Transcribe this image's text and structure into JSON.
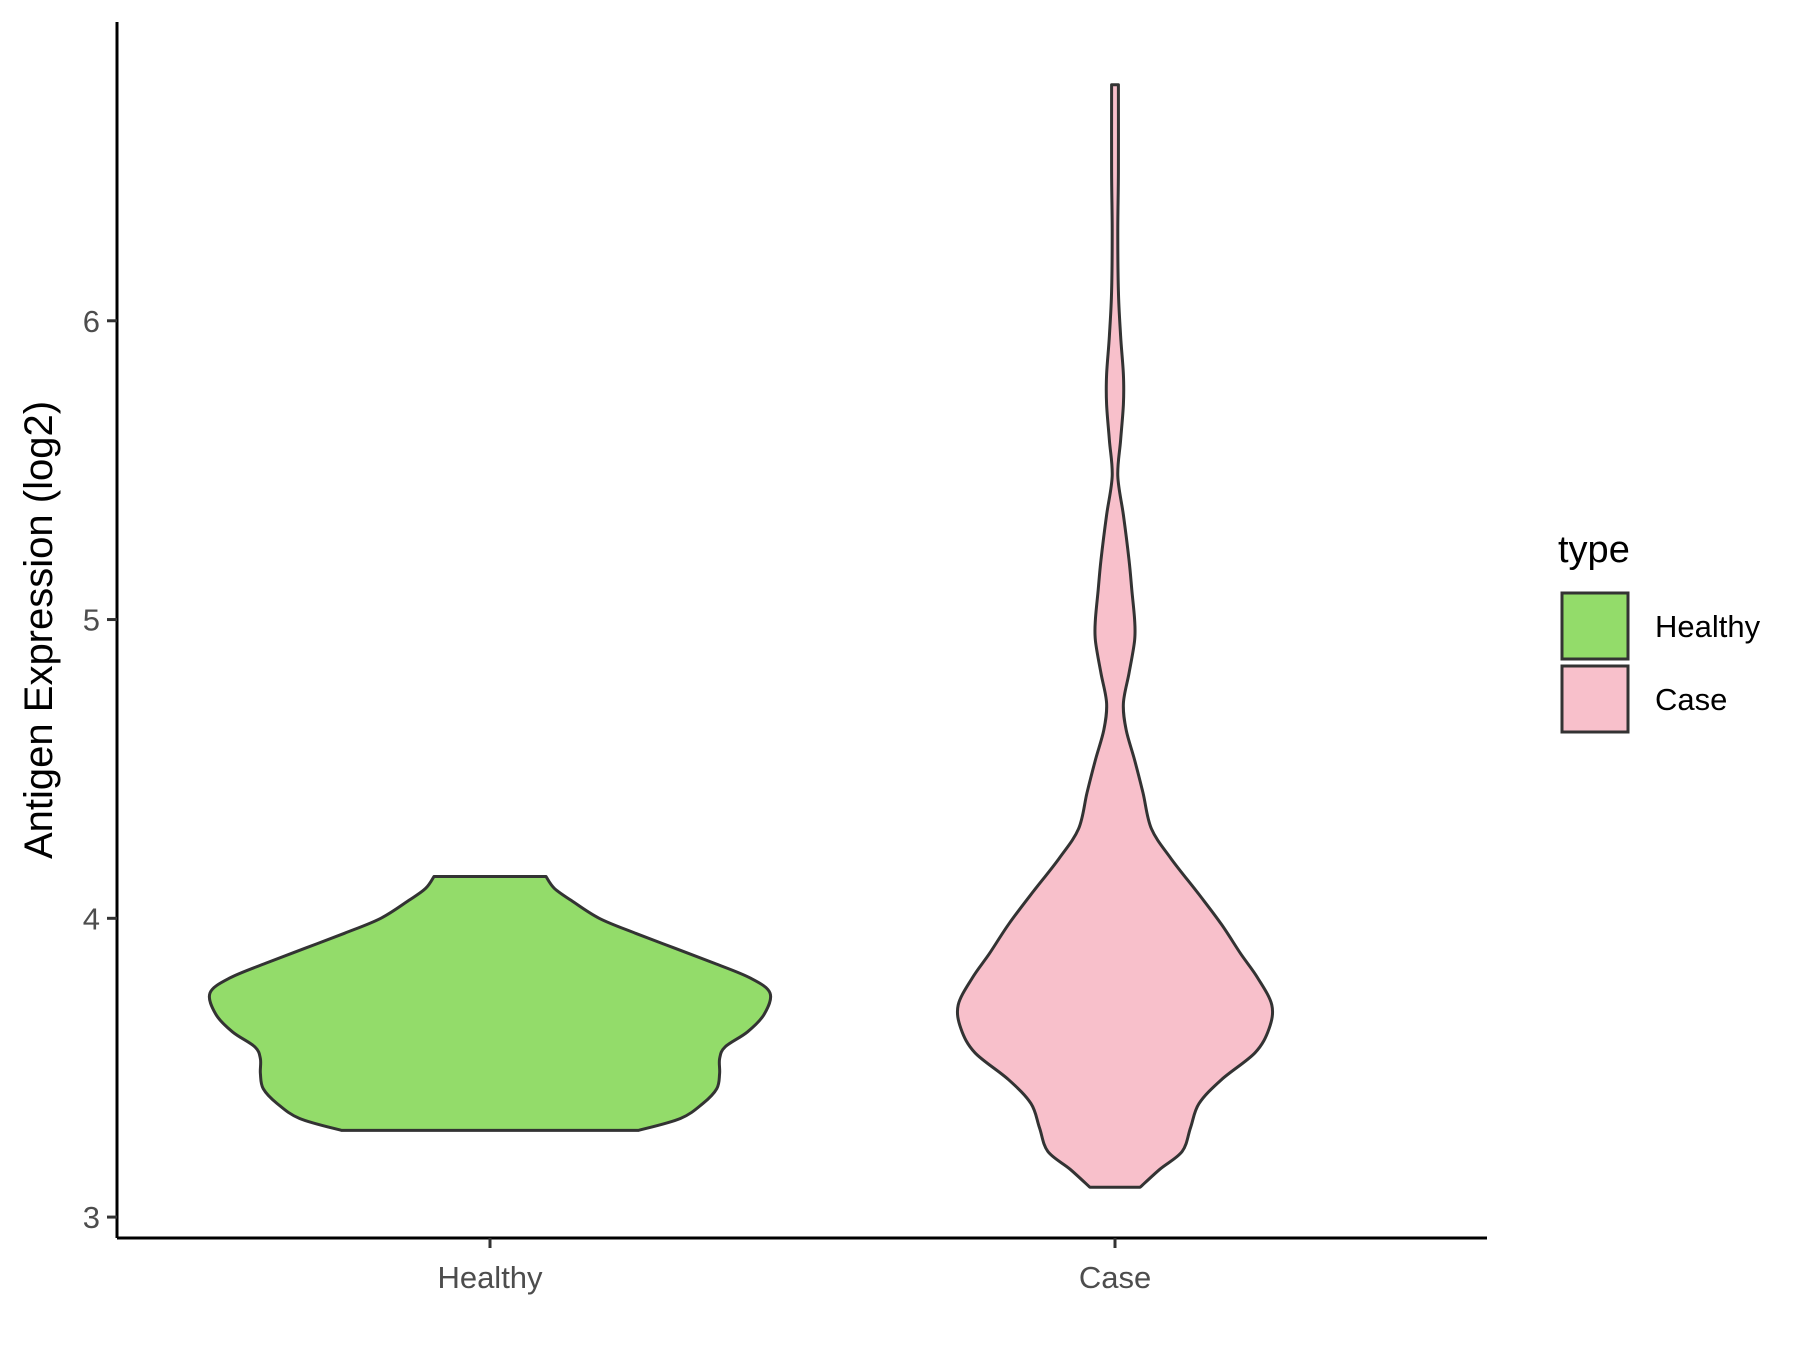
{
  "chart_data": {
    "type": "violin",
    "ylabel": "Antigen Expression (log2)",
    "xlabel": "",
    "ylim": [
      2.93,
      7.0
    ],
    "y_ticks": [
      3,
      4,
      5,
      6
    ],
    "y_tick_labels": [
      "3",
      "4",
      "5",
      "6"
    ],
    "categories": [
      "Healthy",
      "Case"
    ],
    "grid": false,
    "legend": {
      "title": "type",
      "position": "right",
      "entries": [
        {
          "label": "Healthy",
          "color": "#93DC6A"
        },
        {
          "label": "Case",
          "color": "#F8C0CB"
        }
      ]
    },
    "series": [
      {
        "category": "Healthy",
        "color": "#93DC6A",
        "y_min": 3.29,
        "y_max": 4.14,
        "profile": [
          [
            3.29,
            0.53
          ],
          [
            3.33,
            0.68
          ],
          [
            3.38,
            0.76
          ],
          [
            3.43,
            0.81
          ],
          [
            3.48,
            0.82
          ],
          [
            3.53,
            0.82
          ],
          [
            3.57,
            0.84
          ],
          [
            3.62,
            0.92
          ],
          [
            3.68,
            0.98
          ],
          [
            3.75,
            1.0
          ],
          [
            3.8,
            0.93
          ],
          [
            3.85,
            0.8
          ],
          [
            3.9,
            0.66
          ],
          [
            3.95,
            0.52
          ],
          [
            4.0,
            0.39
          ],
          [
            4.06,
            0.29
          ],
          [
            4.1,
            0.23
          ],
          [
            4.14,
            0.2
          ]
        ]
      },
      {
        "category": "Case",
        "color": "#F8C0CB",
        "y_min": 3.1,
        "y_max": 6.79,
        "profile": [
          [
            3.1,
            0.09
          ],
          [
            3.16,
            0.16
          ],
          [
            3.22,
            0.24
          ],
          [
            3.3,
            0.27
          ],
          [
            3.38,
            0.3
          ],
          [
            3.46,
            0.38
          ],
          [
            3.55,
            0.5
          ],
          [
            3.63,
            0.55
          ],
          [
            3.71,
            0.56
          ],
          [
            3.8,
            0.51
          ],
          [
            3.88,
            0.45
          ],
          [
            3.98,
            0.38
          ],
          [
            4.08,
            0.3
          ],
          [
            4.2,
            0.2
          ],
          [
            4.3,
            0.13
          ],
          [
            4.42,
            0.1
          ],
          [
            4.53,
            0.07
          ],
          [
            4.63,
            0.04
          ],
          [
            4.72,
            0.03
          ],
          [
            4.82,
            0.05
          ],
          [
            4.93,
            0.07
          ],
          [
            5.0,
            0.07
          ],
          [
            5.1,
            0.06
          ],
          [
            5.2,
            0.05
          ],
          [
            5.35,
            0.03
          ],
          [
            5.48,
            0.01
          ],
          [
            5.6,
            0.02
          ],
          [
            5.72,
            0.03
          ],
          [
            5.82,
            0.03
          ],
          [
            5.95,
            0.02
          ],
          [
            6.1,
            0.012
          ],
          [
            6.3,
            0.01
          ],
          [
            6.5,
            0.012
          ],
          [
            6.79,
            0.012
          ]
        ]
      }
    ]
  }
}
